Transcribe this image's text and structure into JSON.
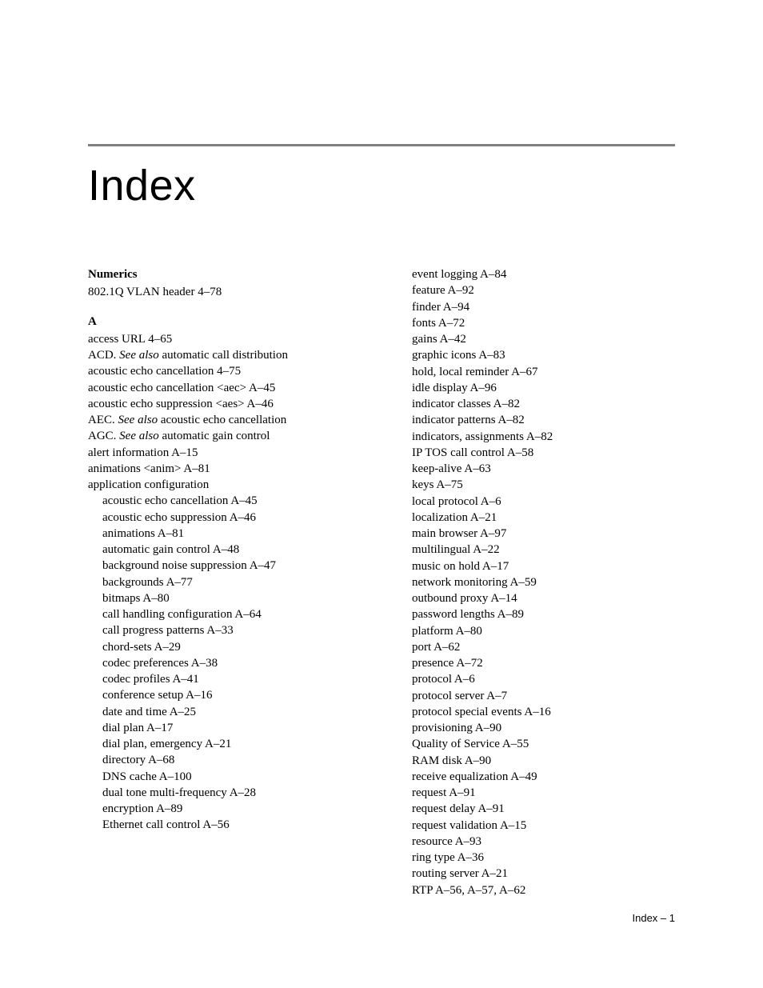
{
  "title": "Index",
  "footer": "Index – 1",
  "left": {
    "sections": [
      {
        "heading": "Numerics",
        "entries": [
          {
            "text": "802.1Q VLAN header 4–78"
          }
        ]
      },
      {
        "heading": "A",
        "entries": [
          {
            "text": "access URL 4–65"
          },
          {
            "html": "ACD. <span class=\"italic\">See also</span> automatic call distribution"
          },
          {
            "text": "acoustic echo cancellation 4–75"
          },
          {
            "text": "acoustic echo cancellation <aec> A–45"
          },
          {
            "text": "acoustic echo suppression <aes> A–46"
          },
          {
            "html": "AEC. <span class=\"italic\">See also</span> acoustic echo cancellation"
          },
          {
            "html": "AGC. <span class=\"italic\">See also</span>  automatic gain control"
          },
          {
            "text": "alert information A–15"
          },
          {
            "text": "animations <anim> A–81"
          },
          {
            "text": "application configuration"
          },
          {
            "text": "acoustic echo cancellation A–45",
            "sub": true
          },
          {
            "text": "acoustic echo suppression A–46",
            "sub": true
          },
          {
            "text": "animations A–81",
            "sub": true
          },
          {
            "text": "automatic gain control A–48",
            "sub": true
          },
          {
            "text": "background noise suppression A–47",
            "sub": true
          },
          {
            "text": "backgrounds A–77",
            "sub": true
          },
          {
            "text": "bitmaps A–80",
            "sub": true
          },
          {
            "text": "call handling configuration A–64",
            "sub": true
          },
          {
            "text": "call progress patterns A–33",
            "sub": true
          },
          {
            "text": "chord-sets A–29",
            "sub": true
          },
          {
            "text": "codec preferences A–38",
            "sub": true
          },
          {
            "text": "codec profiles A–41",
            "sub": true
          },
          {
            "text": "conference setup A–16",
            "sub": true
          },
          {
            "text": "date and time A–25",
            "sub": true
          },
          {
            "text": "dial plan A–17",
            "sub": true
          },
          {
            "text": "dial plan, emergency A–21",
            "sub": true
          },
          {
            "text": "directory A–68",
            "sub": true
          },
          {
            "text": "DNS cache A–100",
            "sub": true
          },
          {
            "text": "dual tone multi-frequency A–28",
            "sub": true
          },
          {
            "text": "encryption A–89",
            "sub": true
          },
          {
            "text": "Ethernet call control A–56",
            "sub": true
          }
        ]
      }
    ]
  },
  "right": {
    "entries": [
      {
        "text": "event logging A–84",
        "sub": true
      },
      {
        "text": "feature A–92",
        "sub": true
      },
      {
        "text": "finder A–94",
        "sub": true
      },
      {
        "text": "fonts A–72",
        "sub": true
      },
      {
        "text": "gains A–42",
        "sub": true
      },
      {
        "text": "graphic icons A–83",
        "sub": true
      },
      {
        "text": "hold, local reminder A–67",
        "sub": true
      },
      {
        "text": "idle display A–96",
        "sub": true
      },
      {
        "text": "indicator classes A–82",
        "sub": true
      },
      {
        "text": "indicator patterns A–82",
        "sub": true
      },
      {
        "text": "indicators, assignments A–82",
        "sub": true
      },
      {
        "text": "IP TOS call control A–58",
        "sub": true
      },
      {
        "text": "keep-alive A–63",
        "sub": true
      },
      {
        "text": "keys A–75",
        "sub": true
      },
      {
        "text": "local protocol A–6",
        "sub": true
      },
      {
        "text": "localization A–21",
        "sub": true
      },
      {
        "text": "main browser A–97",
        "sub": true
      },
      {
        "text": "multilingual A–22",
        "sub": true
      },
      {
        "text": "music on hold A–17",
        "sub": true
      },
      {
        "text": "network monitoring A–59",
        "sub": true
      },
      {
        "text": "outbound proxy A–14",
        "sub": true
      },
      {
        "text": "password lengths A–89",
        "sub": true
      },
      {
        "text": "platform A–80",
        "sub": true
      },
      {
        "text": "port A–62",
        "sub": true
      },
      {
        "text": "presence A–72",
        "sub": true
      },
      {
        "text": "protocol A–6",
        "sub": true
      },
      {
        "text": "protocol server A–7",
        "sub": true
      },
      {
        "text": "protocol special events A–16",
        "sub": true
      },
      {
        "text": "provisioning A–90",
        "sub": true
      },
      {
        "text": "Quality of Service A–55",
        "sub": true
      },
      {
        "text": "RAM disk A–90",
        "sub": true
      },
      {
        "text": "receive equalization A–49",
        "sub": true
      },
      {
        "text": "request A–91",
        "sub": true
      },
      {
        "text": "request delay A–91",
        "sub": true
      },
      {
        "text": "request validation A–15",
        "sub": true
      },
      {
        "text": "resource A–93",
        "sub": true
      },
      {
        "text": "ring type A–36",
        "sub": true
      },
      {
        "text": "routing server A–21",
        "sub": true
      },
      {
        "text": "RTP A–56, A–57, A–62",
        "sub": true
      }
    ]
  }
}
